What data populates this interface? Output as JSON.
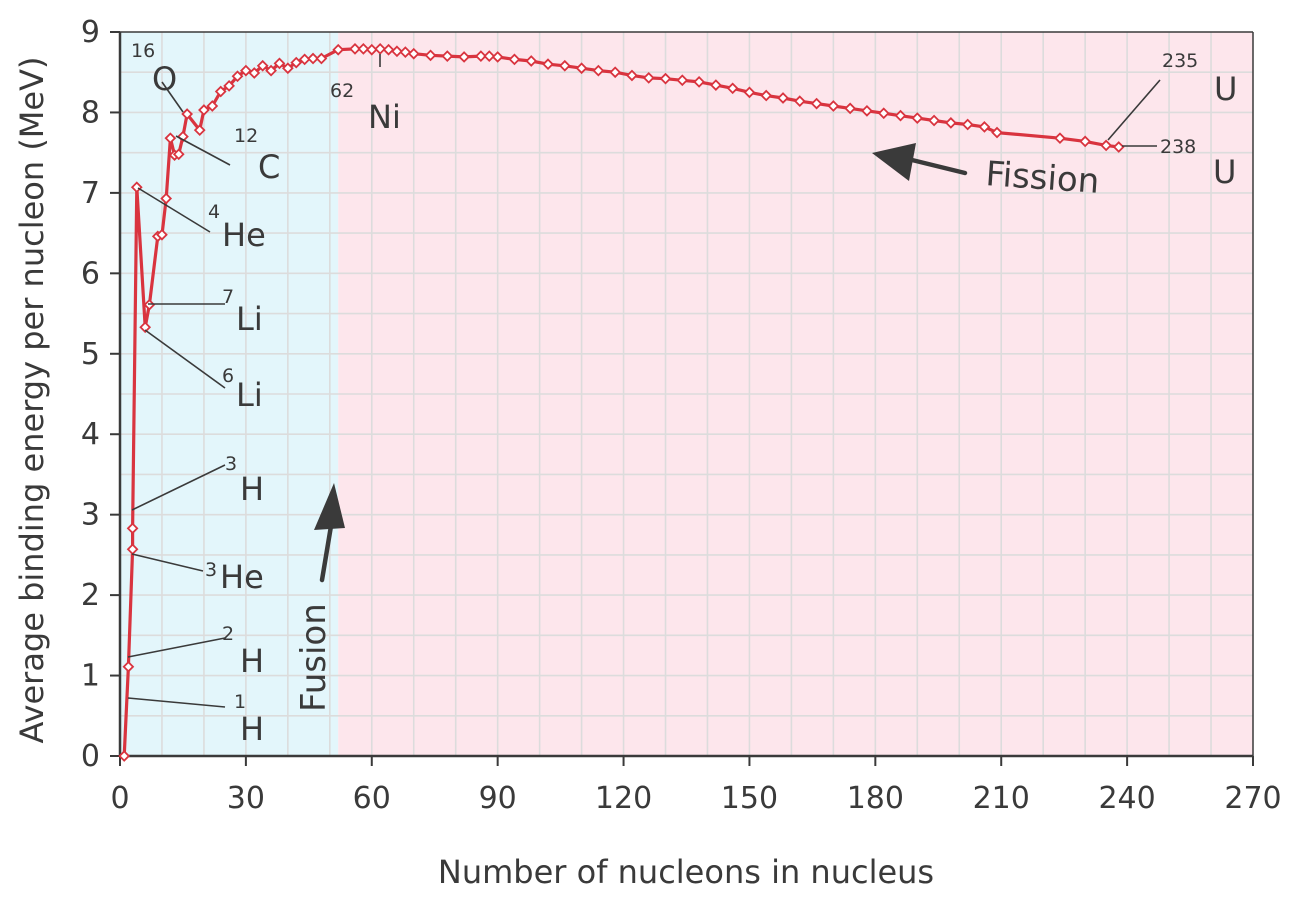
{
  "chart_data": {
    "type": "line",
    "xlabel": "Number of nucleons in nucleus",
    "ylabel": "Average binding energy per nucleon (MeV)",
    "xlim": [
      0,
      270
    ],
    "ylim": [
      0,
      9
    ],
    "xticks": [
      0,
      30,
      60,
      90,
      120,
      150,
      180,
      210,
      240,
      270
    ],
    "xtick_labels": [
      "0",
      "30",
      "60",
      "90",
      "120",
      "150",
      "180",
      "210",
      "240",
      "270"
    ],
    "yticks": [
      0,
      1,
      2,
      3,
      4,
      5,
      6,
      7,
      8,
      9
    ],
    "ytick_labels": [
      "0",
      "1",
      "2",
      "3",
      "4",
      "5",
      "6",
      "7",
      "8",
      "9"
    ],
    "grid": true,
    "regions": [
      {
        "name": "fusion",
        "x_range": [
          0,
          52
        ],
        "color": "#e3f6fb"
      },
      {
        "name": "fission",
        "x_range": [
          52,
          270
        ],
        "color": "#fde6ec"
      }
    ],
    "series": [
      {
        "color": "#d9343f",
        "marker": "diamond",
        "x": [
          1,
          2,
          3,
          3,
          4,
          6,
          7,
          9,
          10,
          11,
          12,
          13,
          14,
          15,
          16,
          19,
          20,
          22,
          24,
          26,
          28,
          30,
          32,
          34,
          36,
          38,
          40,
          42,
          44,
          46,
          48,
          52,
          56,
          58,
          60,
          62,
          64,
          66,
          68,
          70,
          74,
          78,
          82,
          86,
          88,
          90,
          94,
          98,
          102,
          106,
          110,
          114,
          118,
          122,
          126,
          130,
          134,
          138,
          142,
          146,
          150,
          154,
          158,
          162,
          166,
          170,
          174,
          178,
          182,
          186,
          190,
          194,
          198,
          202,
          206,
          209,
          224,
          230,
          235,
          238
        ],
        "y": [
          0.0,
          1.11,
          2.57,
          2.83,
          7.07,
          5.33,
          5.61,
          6.46,
          6.48,
          6.93,
          7.68,
          7.47,
          7.48,
          7.7,
          7.98,
          7.78,
          8.03,
          8.08,
          8.26,
          8.33,
          8.45,
          8.52,
          8.49,
          8.58,
          8.52,
          8.61,
          8.55,
          8.62,
          8.66,
          8.67,
          8.67,
          8.78,
          8.79,
          8.79,
          8.78,
          8.79,
          8.78,
          8.76,
          8.75,
          8.73,
          8.71,
          8.7,
          8.69,
          8.7,
          8.7,
          8.69,
          8.66,
          8.64,
          8.6,
          8.58,
          8.55,
          8.52,
          8.5,
          8.46,
          8.43,
          8.42,
          8.4,
          8.38,
          8.34,
          8.3,
          8.25,
          8.21,
          8.18,
          8.14,
          8.11,
          8.08,
          8.05,
          8.02,
          7.99,
          7.96,
          7.93,
          7.9,
          7.87,
          7.85,
          7.82,
          7.75,
          7.68,
          7.64,
          7.59,
          7.57
        ]
      }
    ],
    "annotations": [
      {
        "sup": "1",
        "sym": "H",
        "x": 1,
        "y": 0.0
      },
      {
        "sup": "2",
        "sym": "H",
        "x": 2,
        "y": 1.11
      },
      {
        "sup": "3",
        "sym": "He",
        "x": 3,
        "y": 2.57
      },
      {
        "sup": "3",
        "sym": "H",
        "x": 3,
        "y": 2.83
      },
      {
        "sup": "6",
        "sym": "Li",
        "x": 6,
        "y": 5.33
      },
      {
        "sup": "7",
        "sym": "Li",
        "x": 7,
        "y": 5.61
      },
      {
        "sup": "4",
        "sym": "He",
        "x": 4,
        "y": 7.07
      },
      {
        "sup": "12",
        "sym": "C",
        "x": 12,
        "y": 7.68
      },
      {
        "sup": "16",
        "sym": "O",
        "x": 16,
        "y": 7.98
      },
      {
        "sup": "62",
        "sym": "Ni",
        "x": 62,
        "y": 8.79
      },
      {
        "sup": "235",
        "sym": "U",
        "x": 235,
        "y": 7.59
      },
      {
        "sup": "238",
        "sym": "U",
        "x": 238,
        "y": 7.57
      }
    ],
    "arrows": [
      {
        "label": "Fusion",
        "direction": "up"
      },
      {
        "label": "Fission",
        "direction": "left"
      }
    ]
  }
}
